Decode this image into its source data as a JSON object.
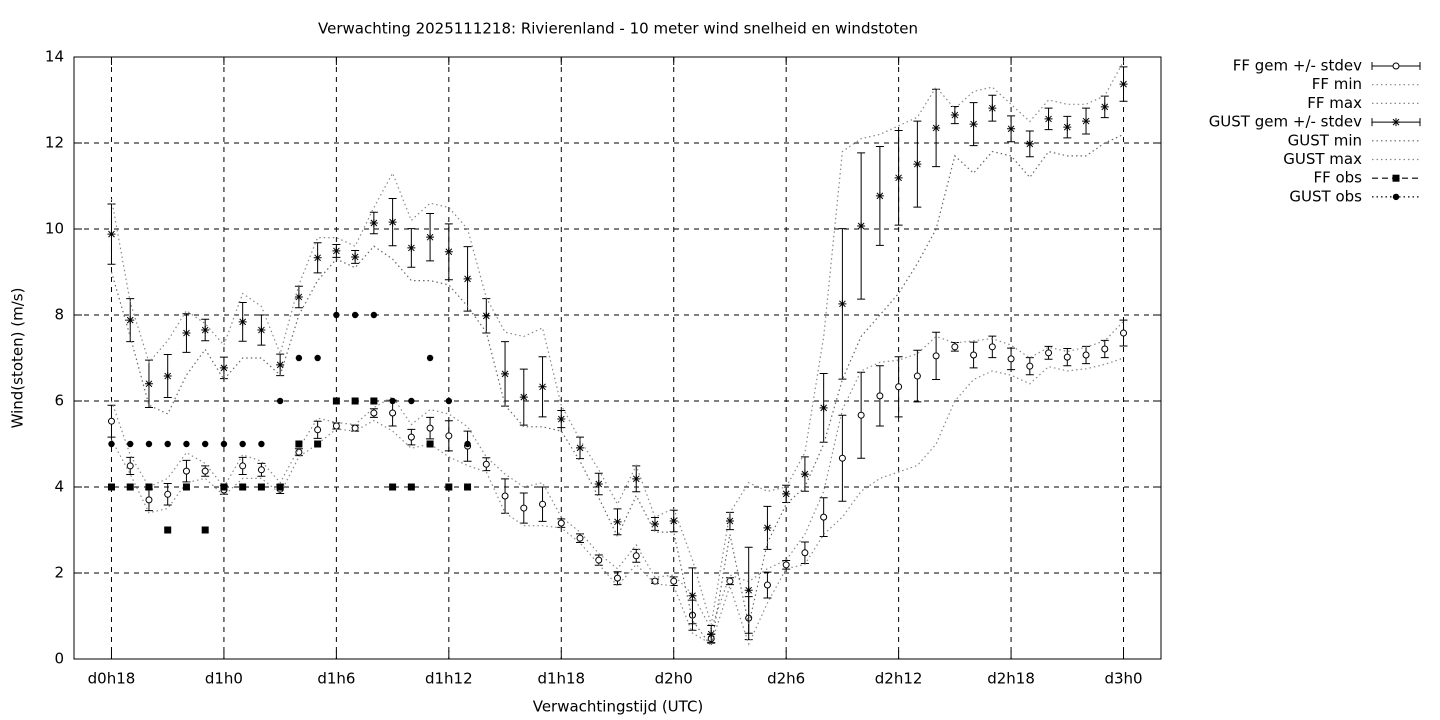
{
  "chart_data": {
    "type": "line",
    "title": "Verwachting 2025111218: Rivierenland - 10 meter wind snelheid en windstoten",
    "x_label": "Verwachtingstijd (UTC)",
    "y_label": "Wind(stoten) (m/s)",
    "x": [
      18,
      19,
      20,
      21,
      22,
      23,
      24,
      25,
      26,
      27,
      28,
      29,
      30,
      31,
      32,
      33,
      34,
      35,
      36,
      37,
      38,
      39,
      40,
      41,
      42,
      43,
      44,
      45,
      46,
      47,
      48,
      49,
      50,
      51,
      52,
      53,
      54,
      55,
      56,
      57,
      58,
      59,
      60,
      61,
      62,
      63,
      64,
      65,
      66,
      67,
      68,
      69,
      70,
      71,
      72
    ],
    "xlim": [
      16,
      74
    ],
    "xticks": [
      {
        "value": 18,
        "label": "d0h18"
      },
      {
        "value": 24,
        "label": "d1h0"
      },
      {
        "value": 30,
        "label": "d1h6"
      },
      {
        "value": 36,
        "label": "d1h12"
      },
      {
        "value": 42,
        "label": "d1h18"
      },
      {
        "value": 48,
        "label": "d2h0"
      },
      {
        "value": 54,
        "label": "d2h6"
      },
      {
        "value": 60,
        "label": "d2h12"
      },
      {
        "value": 66,
        "label": "d2h18"
      },
      {
        "value": 72,
        "label": "d3h0"
      }
    ],
    "ylim": [
      0,
      14
    ],
    "yticks": [
      0,
      2,
      4,
      6,
      8,
      10,
      12,
      14
    ],
    "grid": true,
    "legend": "outside-right",
    "series": [
      {
        "name": "FF gem +/- stdev",
        "color": "#000000",
        "style": "errorbar",
        "marker": "circle",
        "values": [
          5.53,
          4.49,
          3.7,
          3.83,
          4.37,
          4.37,
          3.93,
          4.49,
          4.4,
          3.95,
          4.81,
          5.33,
          5.42,
          5.37,
          5.72,
          5.72,
          5.16,
          5.37,
          5.19,
          4.95,
          4.53,
          3.79,
          3.51,
          3.6,
          3.16,
          2.81,
          2.3,
          1.88,
          2.4,
          1.81,
          1.81,
          1.02,
          0.47,
          1.81,
          0.95,
          1.72,
          2.19,
          2.47,
          3.3,
          4.67,
          5.67,
          6.12,
          6.33,
          6.58,
          7.05,
          7.26,
          7.07,
          7.26,
          6.98,
          6.81,
          7.12,
          7.02,
          7.07,
          7.21,
          7.58
        ],
        "errors": [
          0.37,
          0.2,
          0.25,
          0.25,
          0.25,
          0.12,
          0.1,
          0.2,
          0.15,
          0.1,
          0.08,
          0.2,
          0.07,
          0.07,
          0.1,
          0.3,
          0.18,
          0.25,
          0.35,
          0.35,
          0.15,
          0.4,
          0.35,
          0.4,
          0.1,
          0.1,
          0.12,
          0.15,
          0.15,
          0.05,
          0.1,
          0.35,
          0.1,
          0.08,
          0.5,
          0.3,
          0.1,
          0.25,
          0.45,
          1.0,
          1.0,
          0.7,
          0.7,
          0.6,
          0.55,
          0.1,
          0.3,
          0.25,
          0.25,
          0.2,
          0.15,
          0.2,
          0.2,
          0.2,
          0.3
        ]
      },
      {
        "name": "FF min",
        "color": "#888888",
        "style": "line",
        "marker": null,
        "values": [
          5.1,
          4.3,
          3.4,
          3.5,
          4.1,
          4.2,
          3.8,
          4.2,
          4.2,
          3.85,
          4.7,
          5.0,
          5.35,
          5.3,
          5.55,
          5.3,
          4.9,
          5.0,
          4.7,
          4.5,
          4.35,
          3.4,
          3.1,
          3.1,
          3.05,
          2.7,
          2.2,
          1.7,
          2.2,
          1.75,
          1.7,
          0.6,
          0.35,
          1.7,
          0.35,
          1.3,
          2.1,
          2.2,
          2.9,
          3.3,
          3.9,
          4.2,
          4.35,
          4.5,
          5.0,
          6.0,
          6.5,
          6.7,
          6.6,
          6.4,
          6.8,
          6.7,
          6.75,
          6.85,
          7.0
        ]
      },
      {
        "name": "FF max",
        "color": "#888888",
        "style": "line",
        "marker": null,
        "values": [
          6.0,
          4.75,
          4.0,
          4.2,
          4.8,
          4.55,
          4.0,
          4.75,
          4.6,
          4.1,
          4.9,
          5.6,
          5.5,
          5.45,
          5.85,
          6.1,
          5.45,
          5.8,
          5.7,
          5.4,
          4.7,
          4.3,
          4.0,
          4.1,
          3.3,
          2.95,
          2.45,
          2.1,
          2.65,
          1.9,
          1.95,
          1.5,
          0.7,
          1.95,
          1.8,
          2.1,
          2.3,
          2.9,
          3.9,
          5.8,
          6.7,
          6.9,
          6.95,
          7.1,
          7.5,
          7.35,
          7.4,
          7.45,
          7.3,
          7.0,
          7.25,
          7.15,
          7.25,
          7.4,
          7.85
        ]
      },
      {
        "name": "GUST gem +/- stdev",
        "color": "#000000",
        "style": "errorbar",
        "marker": "star",
        "values": [
          9.88,
          7.88,
          6.4,
          6.58,
          7.58,
          7.65,
          6.77,
          7.84,
          7.65,
          6.84,
          8.42,
          9.33,
          9.49,
          9.35,
          10.14,
          10.16,
          9.56,
          9.81,
          9.47,
          8.84,
          7.98,
          6.63,
          6.09,
          6.33,
          5.58,
          4.91,
          4.07,
          3.19,
          4.19,
          3.14,
          3.21,
          1.47,
          0.58,
          3.21,
          1.6,
          3.05,
          3.84,
          4.3,
          5.84,
          8.26,
          10.07,
          10.77,
          11.19,
          11.51,
          12.35,
          12.65,
          12.44,
          12.81,
          12.33,
          11.98,
          12.56,
          12.37,
          12.51,
          12.84,
          13.37
        ],
        "errors": [
          0.7,
          0.5,
          0.55,
          0.5,
          0.45,
          0.25,
          0.25,
          0.45,
          0.35,
          0.25,
          0.25,
          0.35,
          0.15,
          0.15,
          0.25,
          0.55,
          0.45,
          0.55,
          0.65,
          0.75,
          0.4,
          0.75,
          0.65,
          0.7,
          0.2,
          0.25,
          0.25,
          0.3,
          0.3,
          0.15,
          0.25,
          0.65,
          0.2,
          0.2,
          1.0,
          0.5,
          0.2,
          0.4,
          0.8,
          1.75,
          1.7,
          1.15,
          1.1,
          1.0,
          0.9,
          0.2,
          0.5,
          0.3,
          0.3,
          0.3,
          0.25,
          0.25,
          0.3,
          0.25,
          0.4
        ]
      },
      {
        "name": "GUST min",
        "color": "#666666",
        "style": "line",
        "marker": null,
        "values": [
          9.0,
          7.5,
          5.9,
          5.7,
          6.6,
          7.2,
          6.5,
          7.0,
          7.0,
          6.6,
          8.0,
          8.8,
          9.3,
          9.1,
          9.6,
          9.3,
          8.8,
          8.8,
          8.7,
          8.2,
          7.6,
          5.9,
          5.4,
          5.4,
          5.3,
          4.6,
          3.75,
          2.85,
          3.8,
          2.95,
          2.95,
          0.9,
          0.3,
          2.9,
          0.8,
          2.7,
          3.6,
          4.0,
          5.0,
          6.5,
          7.5,
          8.0,
          8.5,
          9.2,
          10.0,
          11.7,
          11.3,
          11.8,
          11.7,
          11.2,
          11.8,
          11.7,
          11.7,
          12.0,
          12.2
        ]
      },
      {
        "name": "GUST max",
        "color": "#888888",
        "style": "line",
        "marker": null,
        "values": [
          10.7,
          8.3,
          6.9,
          7.4,
          8.1,
          7.8,
          7.3,
          8.5,
          8.2,
          7.1,
          8.7,
          9.8,
          9.8,
          9.6,
          10.5,
          11.3,
          10.2,
          10.6,
          10.5,
          10.0,
          8.4,
          7.6,
          7.5,
          7.7,
          5.9,
          5.1,
          4.4,
          3.6,
          4.5,
          3.3,
          3.5,
          2.3,
          0.8,
          3.4,
          4.1,
          3.9,
          4.0,
          4.8,
          7.5,
          11.8,
          12.1,
          12.2,
          12.4,
          12.6,
          13.3,
          12.8,
          13.2,
          13.3,
          12.9,
          12.5,
          13.0,
          12.9,
          12.9,
          13.1,
          13.9
        ]
      },
      {
        "name": "FF obs",
        "color": "#000000",
        "style": "points-dashed",
        "marker": "square",
        "values": [
          4,
          4,
          4,
          3,
          4,
          3,
          4,
          4,
          4,
          4,
          5,
          5,
          6,
          6,
          6,
          4,
          4,
          5,
          4,
          4,
          null,
          null,
          null,
          null,
          null,
          null,
          null,
          null,
          null,
          null,
          null,
          null,
          null,
          null,
          null,
          null,
          null,
          null,
          null,
          null,
          null,
          null,
          null,
          null,
          null,
          null,
          null,
          null,
          null,
          null,
          null,
          null,
          null,
          null,
          null
        ]
      },
      {
        "name": "GUST obs",
        "color": "#000000",
        "style": "points-dotted",
        "marker": "dot",
        "values": [
          5,
          5,
          5,
          5,
          5,
          5,
          5,
          5,
          5,
          6,
          7,
          7,
          8,
          8,
          8,
          6,
          6,
          7,
          6,
          5,
          null,
          null,
          null,
          null,
          null,
          null,
          null,
          null,
          null,
          null,
          null,
          null,
          null,
          null,
          null,
          null,
          null,
          null,
          null,
          null,
          null,
          null,
          null,
          null,
          null,
          null,
          null,
          null,
          null,
          null,
          null,
          null,
          null,
          null,
          null
        ]
      }
    ]
  }
}
